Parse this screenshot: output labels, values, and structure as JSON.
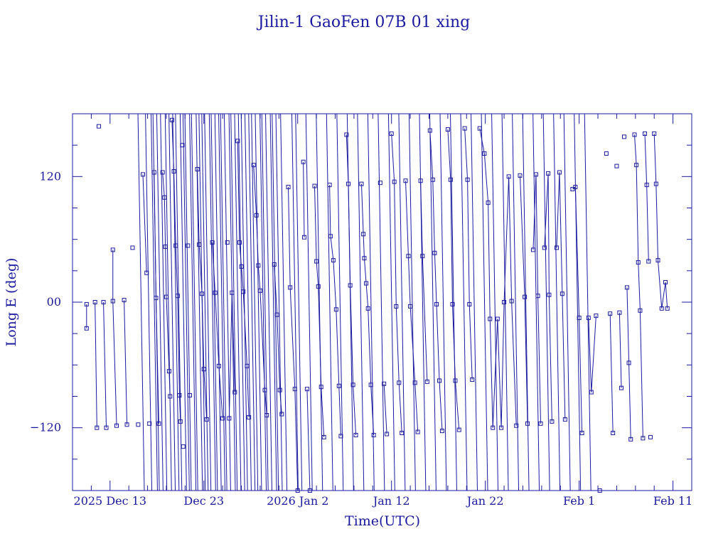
{
  "chart_data": {
    "type": "line",
    "title": "Jilin-1 GaoFen 07B 01 xing",
    "xlabel": "Time(UTC)",
    "ylabel": "Long E (deg)",
    "x_axis": {
      "range": [
        "2025-12-09",
        "2026-02-13"
      ],
      "tick_labels": [
        {
          "x": "2025-12-13",
          "label": "2025 Dec 13"
        },
        {
          "x": "2025-12-23",
          "label": "Dec 23"
        },
        {
          "x": "2026-01-02",
          "label": "2026 Jan  2"
        },
        {
          "x": "2026-01-12",
          "label": "Jan 12"
        },
        {
          "x": "2026-01-22",
          "label": "Jan 22"
        },
        {
          "x": "2026-02-01",
          "label": "Feb  1"
        },
        {
          "x": "2026-02-11",
          "label": "Feb 11"
        }
      ]
    },
    "y_axis": {
      "range": [
        -180,
        180
      ],
      "tick_labels": [
        {
          "y": 120,
          "label": "120"
        },
        {
          "y": 0,
          "label": "00"
        },
        {
          "y": -120,
          "label": "−120"
        }
      ]
    },
    "grid": false,
    "colors": {
      "line": "#1a1aa0",
      "text": "#1a1aa0",
      "background": "#ffffff"
    },
    "series": [
      {
        "values": [
          [
            "2025-12-16.2",
            165
          ],
          [
            "2025-12-17.0",
            130
          ],
          [
            "2025-12-17.6",
            5
          ],
          [
            "2025-12-17.8",
            120
          ],
          [
            "2025-12-18.2",
            -95
          ],
          [
            "2025-12-18.6",
            -125
          ],
          [
            "2025-12-19.1",
            123
          ],
          [
            "2025-12-19.5",
            -120
          ],
          [
            "2025-12-19.9",
            3
          ],
          [
            "2025-12-20.2",
            125
          ],
          [
            "2025-12-20.7",
            -120
          ],
          [
            "2025-12-21.0",
            3
          ],
          [
            "2025-12-21.2",
            125
          ],
          [
            "2025-12-21.7",
            -120
          ],
          [
            "2025-12-21.9",
            3
          ],
          [
            "2025-12-22.4",
            125
          ],
          [
            "2025-12-22.7",
            -115
          ],
          [
            "2025-12-23.0",
            8
          ],
          [
            "2025-12-23.3",
            125
          ],
          [
            "2025-12-23.8",
            -115
          ],
          [
            "2025-12-24.0",
            8
          ],
          [
            "2025-12-24.4",
            125
          ],
          [
            "2025-12-24.8",
            -115
          ],
          [
            "2025-12-25.0",
            8
          ],
          [
            "2025-12-25.4",
            125
          ],
          [
            "2025-12-25.9",
            -115
          ],
          [
            "2025-12-26.1",
            8
          ],
          [
            "2025-12-26.5",
            125
          ],
          [
            "2025-12-26.9",
            -115
          ],
          [
            "2025-12-27.2",
            8
          ],
          [
            "2025-12-27.6",
            125
          ],
          [
            "2025-12-28.0",
            -115
          ],
          [
            "2025-12-28.3",
            8
          ],
          [
            "2025-12-28.7",
            125
          ],
          [
            "2025-12-29.2",
            -115
          ],
          [
            "2025-12-29.4",
            8
          ],
          [
            "2025-12-29.8",
            125
          ],
          [
            "2025-12-30.3",
            -115
          ],
          [
            "2025-12-30.5",
            8
          ],
          [
            "2025-12-30.9",
            125
          ],
          [
            "2025-12-31.4",
            -115
          ],
          [
            "2026-01-01.6",
            8
          ],
          [
            "2026-01-02.0",
            125
          ],
          [
            "2026-01-03.1",
            8
          ],
          [
            "2026-01-04.2",
            125
          ],
          [
            "2026-01-05.3",
            8
          ],
          [
            "2026-01-06.4",
            125
          ],
          [
            "2026-01-07.5",
            8
          ],
          [
            "2026-01-08.6",
            125
          ],
          [
            "2026-01-09.7",
            8
          ],
          [
            "2026-01-10.8",
            125
          ],
          [
            "2026-01-11.9",
            8
          ],
          [
            "2026-01-13.0",
            125
          ],
          [
            "2026-01-14.1",
            8
          ],
          [
            "2026-01-15.2",
            125
          ],
          [
            "2026-01-16.3",
            8
          ],
          [
            "2026-01-17.4",
            125
          ],
          [
            "2026-01-18.5",
            8
          ],
          [
            "2026-01-19.6",
            125
          ],
          [
            "2026-01-20.7",
            8
          ],
          [
            "2026-01-21.8",
            125
          ],
          [
            "2026-01-22.9",
            8
          ],
          [
            "2026-01-24.0",
            125
          ],
          [
            "2026-01-25.1",
            8
          ],
          [
            "2026-01-26.2",
            125
          ],
          [
            "2026-01-27.3",
            8
          ],
          [
            "2026-01-28.4",
            125
          ],
          [
            "2026-01-29.5",
            8
          ],
          [
            "2026-01-30.6",
            125
          ],
          [
            "2026-01-31.7",
            8
          ],
          [
            "2026-02-01.8",
            125
          ]
        ]
      }
    ],
    "markers": [
      [
        "2025-12-10.5",
        -25
      ],
      [
        "2025-12-10.5",
        -2
      ],
      [
        "2025-12-11.4",
        0
      ],
      [
        "2025-12-11.8",
        168
      ],
      [
        "2025-12-11.6",
        -120
      ],
      [
        "2025-12-12.3",
        0
      ],
      [
        "2025-12-12.6",
        -120
      ],
      [
        "2025-12-13.3",
        50
      ],
      [
        "2025-12-13.3",
        1
      ],
      [
        "2025-12-13.7",
        -118
      ],
      [
        "2025-12-14.5",
        2
      ],
      [
        "2025-12-14.8",
        -117
      ],
      [
        "2025-12-15.4",
        52
      ],
      [
        "2025-12-16.0",
        -117
      ],
      [
        "2025-12-16.5",
        122
      ],
      [
        "2025-12-16.9",
        28
      ],
      [
        "2025-12-17.2",
        -116
      ],
      [
        "2025-12-17.7",
        124
      ],
      [
        "2025-12-17.9",
        4
      ],
      [
        "2025-12-18.2",
        -116
      ],
      [
        "2025-12-18.6",
        124
      ],
      [
        "2025-12-18.8",
        100
      ],
      [
        "2025-12-18.9",
        53
      ],
      [
        "2025-12-19.0",
        5
      ],
      [
        "2025-12-19.3",
        -66
      ],
      [
        "2025-12-19.4",
        -90
      ],
      [
        "2025-12-19.6",
        174
      ],
      [
        "2025-12-19.8",
        125
      ],
      [
        "2025-12-20.0",
        54
      ],
      [
        "2025-12-20.2",
        6
      ],
      [
        "2025-12-20.4",
        -89
      ],
      [
        "2025-12-20.5",
        -114
      ],
      [
        "2025-12-20.7",
        150
      ],
      [
        "2025-12-20.8",
        -138
      ],
      [
        "2025-12-21.3",
        54
      ],
      [
        "2025-12-21.5",
        -89
      ],
      [
        "2025-12-22.3",
        127
      ],
      [
        "2025-12-22.5",
        55
      ],
      [
        "2025-12-22.8",
        8
      ],
      [
        "2025-12-23.0",
        -64
      ],
      [
        "2025-12-23.3",
        -112
      ],
      [
        "2025-12-23.9",
        57
      ],
      [
        "2025-12-24.2",
        9
      ],
      [
        "2025-12-24.6",
        -61
      ],
      [
        "2025-12-25.0",
        -111
      ],
      [
        "2025-12-25.5",
        57
      ],
      [
        "2025-12-25.7",
        -111
      ],
      [
        "2025-12-26.0",
        9
      ],
      [
        "2025-12-26.3",
        -86
      ],
      [
        "2025-12-26.6",
        154
      ],
      [
        "2025-12-26.8",
        57
      ],
      [
        "2025-12-27.0",
        34
      ],
      [
        "2025-12-27.2",
        10
      ],
      [
        "2025-12-27.6",
        -61
      ],
      [
        "2025-12-27.8",
        -110
      ],
      [
        "2025-12-28.3",
        131
      ],
      [
        "2025-12-28.6",
        83
      ],
      [
        "2025-12-28.8",
        35
      ],
      [
        "2025-12-29.0",
        11
      ],
      [
        "2025-12-29.5",
        -84
      ],
      [
        "2025-12-29.7",
        -108
      ],
      [
        "2025-12-30.5",
        36
      ],
      [
        "2025-12-30.8",
        -12
      ],
      [
        "2025-12-31.1",
        -84
      ],
      [
        "2025-12-31.3",
        -107
      ],
      [
        "2026-01-01.0",
        110
      ],
      [
        "2026-01-01.2",
        14
      ],
      [
        "2026-01-01.7",
        -83
      ],
      [
        "2026-01-02.0",
        -180
      ],
      [
        "2026-01-02.6",
        134
      ],
      [
        "2026-01-02.7",
        62
      ],
      [
        "2026-01-03.0",
        -83
      ],
      [
        "2026-01-03.3",
        -180
      ],
      [
        "2026-01-03.8",
        111
      ],
      [
        "2026-01-04.0",
        39
      ],
      [
        "2026-01-04.2",
        15
      ],
      [
        "2026-01-04.5",
        -81
      ],
      [
        "2026-01-04.8",
        -129
      ],
      [
        "2026-01-05.4",
        112
      ],
      [
        "2026-01-05.5",
        63
      ],
      [
        "2026-01-05.8",
        40
      ],
      [
        "2026-01-06.1",
        -7
      ],
      [
        "2026-01-06.4",
        -80
      ],
      [
        "2026-01-06.6",
        -128
      ],
      [
        "2026-01-07.2",
        160
      ],
      [
        "2026-01-07.4",
        113
      ],
      [
        "2026-01-07.6",
        16
      ],
      [
        "2026-01-07.9",
        -79
      ],
      [
        "2026-01-08.2",
        -127
      ],
      [
        "2026-01-08.8",
        113
      ],
      [
        "2026-01-09.0",
        65
      ],
      [
        "2026-01-09.1",
        42
      ],
      [
        "2026-01-09.3",
        18
      ],
      [
        "2026-01-09.5",
        -6
      ],
      [
        "2026-01-09.8",
        -79
      ],
      [
        "2026-01-10.1",
        -127
      ],
      [
        "2026-01-10.8",
        114
      ],
      [
        "2026-01-11.2",
        -78
      ],
      [
        "2026-01-11.5",
        -126
      ],
      [
        "2026-01-12.0",
        161
      ],
      [
        "2026-01-12.3",
        115
      ],
      [
        "2026-01-12.5",
        -4
      ],
      [
        "2026-01-12.8",
        -77
      ],
      [
        "2026-01-13.1",
        -125
      ],
      [
        "2026-01-13.5",
        116
      ],
      [
        "2026-01-13.8",
        44
      ],
      [
        "2026-01-14.0",
        -4
      ],
      [
        "2026-01-14.5",
        -77
      ],
      [
        "2026-01-14.8",
        -124
      ],
      [
        "2026-01-15.1",
        116
      ],
      [
        "2026-01-15.3",
        44
      ],
      [
        "2026-01-15.8",
        -76
      ],
      [
        "2026-01-16.1",
        164
      ],
      [
        "2026-01-16.4",
        117
      ],
      [
        "2026-01-16.6",
        47
      ],
      [
        "2026-01-16.8",
        -2
      ],
      [
        "2026-01-17.1",
        -75
      ],
      [
        "2026-01-17.4",
        -123
      ],
      [
        "2026-01-18.0",
        165
      ],
      [
        "2026-01-18.3",
        117
      ],
      [
        "2026-01-18.5",
        -2
      ],
      [
        "2026-01-18.8",
        -75
      ],
      [
        "2026-01-19.2",
        -122
      ],
      [
        "2026-01-19.8",
        166
      ],
      [
        "2026-01-20.1",
        117
      ],
      [
        "2026-01-20.3",
        -2
      ],
      [
        "2026-01-20.6",
        -74
      ],
      [
        "2026-01-21.4",
        166
      ],
      [
        "2026-01-21.9",
        142
      ],
      [
        "2026-01-22.3",
        95
      ],
      [
        "2026-01-22.5",
        -16
      ],
      [
        "2026-01-22.8",
        -120
      ],
      [
        "2026-01-23.3",
        -16
      ],
      [
        "2026-01-23.7",
        -120
      ],
      [
        "2026-01-24.0",
        0
      ],
      [
        "2026-01-24.5",
        120
      ],
      [
        "2026-01-24.8",
        1
      ],
      [
        "2026-01-25.3",
        -118
      ],
      [
        "2026-01-25.7",
        121
      ],
      [
        "2026-01-26.2",
        5
      ],
      [
        "2026-01-26.5",
        -116
      ],
      [
        "2026-01-27.1",
        50
      ],
      [
        "2026-01-27.4",
        122
      ],
      [
        "2026-01-27.6",
        6
      ],
      [
        "2026-01-27.9",
        -116
      ],
      [
        "2026-01-28.3",
        52
      ],
      [
        "2026-01-28.7",
        123
      ],
      [
        "2026-01-28.8",
        7
      ],
      [
        "2026-01-29.1",
        -114
      ],
      [
        "2026-01-29.6",
        52
      ],
      [
        "2026-01-29.9",
        124
      ],
      [
        "2026-01-30.2",
        8
      ],
      [
        "2026-01-30.5",
        -112
      ],
      [
        "2026-01-31.3",
        108
      ],
      [
        "2026-01-31.6",
        110
      ],
      [
        "2026-02-01.0",
        -15
      ],
      [
        "2026-02-01.3",
        -125
      ],
      [
        "2026-02-02.0",
        -15
      ],
      [
        "2026-02-02.3",
        -86
      ],
      [
        "2026-02-02.8",
        -13
      ],
      [
        "2026-02-03.2",
        -180
      ],
      [
        "2026-02-03.9",
        142
      ],
      [
        "2026-02-04.3",
        -11
      ],
      [
        "2026-02-04.6",
        -125
      ],
      [
        "2026-02-05.0",
        130
      ],
      [
        "2026-02-05.3",
        -10
      ],
      [
        "2026-02-05.5",
        -82
      ],
      [
        "2026-02-05.8",
        158
      ],
      [
        "2026-02-06.1",
        14
      ],
      [
        "2026-02-06.3",
        -58
      ],
      [
        "2026-02-06.5",
        -131
      ],
      [
        "2026-02-06.9",
        160
      ],
      [
        "2026-02-07.1",
        131
      ],
      [
        "2026-02-07.3",
        38
      ],
      [
        "2026-02-07.5",
        -8
      ],
      [
        "2026-02-07.8",
        -130
      ],
      [
        "2026-02-08.0",
        161
      ],
      [
        "2026-02-08.2",
        112
      ],
      [
        "2026-02-08.4",
        39
      ],
      [
        "2026-02-08.6",
        -129
      ],
      [
        "2026-02-09.0",
        161
      ],
      [
        "2026-02-09.2",
        113
      ],
      [
        "2026-02-09.4",
        40
      ],
      [
        "2026-02-09.8",
        -6
      ],
      [
        "2026-02-10.2",
        19
      ],
      [
        "2026-02-10.4",
        -6
      ]
    ]
  }
}
